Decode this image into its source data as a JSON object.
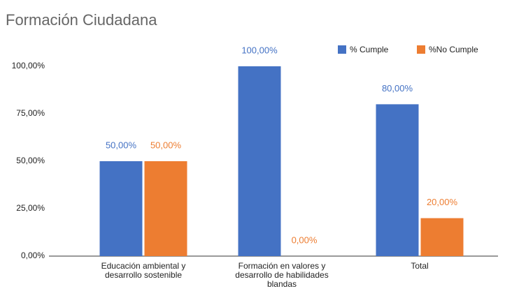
{
  "chart_data": {
    "type": "bar",
    "title": "Formación Ciudadana",
    "categories": [
      "Educación ambiental y desarrollo sostenible",
      "Formación en valores y desarrollo de habilidades blandas",
      "Total"
    ],
    "series": [
      {
        "name": "% Cumple",
        "color": "#4472c4",
        "values": [
          50,
          100,
          80
        ],
        "value_labels": [
          "50,00%",
          "100,00%",
          "80,00%"
        ]
      },
      {
        "name": "%No Cumple",
        "color": "#ed7d31",
        "values": [
          50,
          0,
          20
        ],
        "value_labels": [
          "50,00%",
          "0,00%",
          "20,00%"
        ]
      }
    ],
    "ylim": [
      0,
      100
    ],
    "yticks": [
      {
        "value": 0,
        "label": "0,00%"
      },
      {
        "value": 25,
        "label": "25,00%"
      },
      {
        "value": 50,
        "label": "50,00%"
      },
      {
        "value": 75,
        "label": "75,00%"
      },
      {
        "value": 100,
        "label": "100,00%"
      }
    ],
    "grid": false,
    "legend": "top-right"
  }
}
